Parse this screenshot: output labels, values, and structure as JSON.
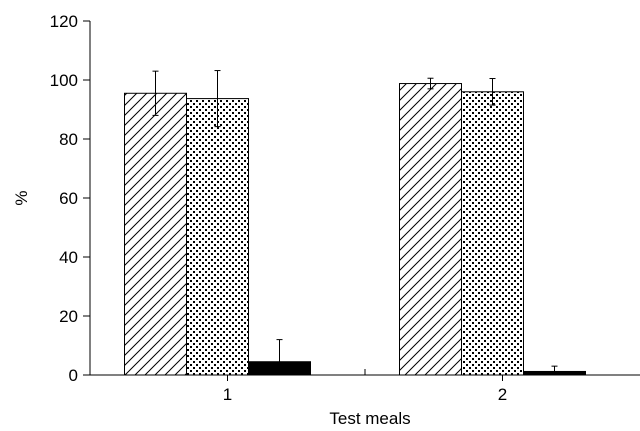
{
  "chart_data": {
    "type": "bar",
    "categories": [
      "1",
      "2"
    ],
    "series": [
      {
        "pattern": "diagonal-hatch",
        "values": [
          95.5,
          98.8
        ],
        "error": [
          7.5,
          1.8
        ]
      },
      {
        "pattern": "dotted",
        "values": [
          93.7,
          96.0
        ],
        "error": [
          9.5,
          4.5
        ]
      },
      {
        "pattern": "solid-black",
        "values": [
          4.5,
          1.2
        ],
        "error": [
          7.5,
          1.8
        ]
      }
    ],
    "xlabel": "Test meals",
    "ylabel": "%",
    "ylim": [
      0,
      120
    ],
    "yticks": [
      0,
      20,
      40,
      60,
      80,
      100,
      120
    ],
    "grid": false,
    "legend": "none"
  },
  "colors": {
    "axis": "#000000",
    "bar_stroke": "#000000",
    "solid_fill": "#000000",
    "background": "#ffffff"
  }
}
